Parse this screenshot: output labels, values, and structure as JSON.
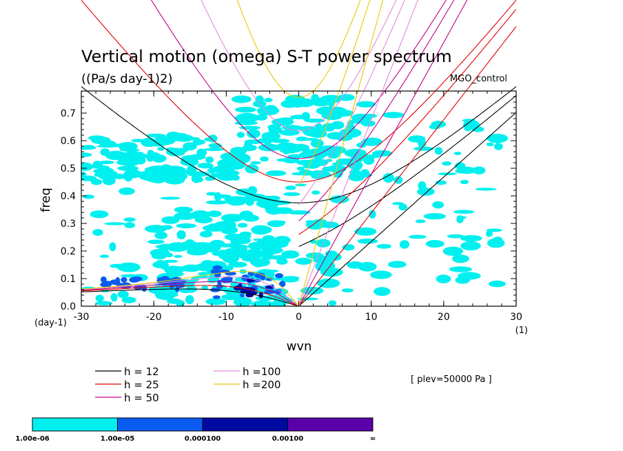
{
  "chart_data": {
    "type": "heatmap",
    "title": "Vertical motion (omega) S-T power spectrum",
    "subtitle": "((Pa/s day-1)2)",
    "run_label": "MGO_control",
    "xlabel": "wvn",
    "ylabel": "freq",
    "x_unit_label": "(1)",
    "y_unit_label": "(day-1)",
    "xlim": [
      -30,
      30
    ],
    "ylim": [
      0.0,
      0.78
    ],
    "xticks": [
      {
        "value": -30,
        "label": "-30"
      },
      {
        "value": -20,
        "label": "-20"
      },
      {
        "value": -10,
        "label": "-10"
      },
      {
        "value": 0,
        "label": "0"
      },
      {
        "value": 10,
        "label": "10"
      },
      {
        "value": 20,
        "label": "20"
      },
      {
        "value": 30,
        "label": "30"
      }
    ],
    "yticks": [
      {
        "value": 0.0,
        "label": "0.0"
      },
      {
        "value": 0.1,
        "label": "0.1"
      },
      {
        "value": 0.2,
        "label": "0.2"
      },
      {
        "value": 0.3,
        "label": "0.3"
      },
      {
        "value": 0.4,
        "label": "0.4"
      },
      {
        "value": 0.5,
        "label": "0.5"
      },
      {
        "value": 0.6,
        "label": "0.6"
      },
      {
        "value": 0.7,
        "label": "0.7"
      }
    ],
    "dispersion_curves": [
      {
        "label": "h = 12",
        "color": "#000000",
        "equatorial_depth": 12
      },
      {
        "label": "h = 25",
        "color": "#e00000",
        "equatorial_depth": 25
      },
      {
        "label": "h = 50",
        "color": "#c0008a",
        "equatorial_depth": 50
      },
      {
        "label": "h =100",
        "color": "#e08ad8",
        "equatorial_depth": 100
      },
      {
        "label": "h =200",
        "color": "#e8c800",
        "equatorial_depth": 200
      }
    ],
    "annotation": "[ plev=50000 Pa ]",
    "colorbar": {
      "levels": [
        "1.00e-06",
        "1.00e-05",
        "0.000100",
        "0.00100",
        "∞"
      ],
      "colors": [
        "#00f0f0",
        "#0a5cf0",
        "#000aa0",
        "#5a00aa"
      ]
    },
    "power_regions": [
      {
        "level": 1,
        "wvn": [
          -29,
          -1
        ],
        "freq": [
          0.01,
          0.43
        ]
      },
      {
        "level": 1,
        "wvn": [
          -20,
          -2
        ],
        "freq": [
          0.0,
          0.34
        ]
      },
      {
        "level": 1,
        "wvn": [
          -8,
          10
        ],
        "freq": [
          0.47,
          0.76
        ]
      },
      {
        "level": 1,
        "wvn": [
          -2,
          28
        ],
        "freq": [
          0.0,
          0.72
        ]
      },
      {
        "level": 1,
        "wvn": [
          -30,
          -8
        ],
        "freq": [
          0.45,
          0.62
        ]
      },
      {
        "level": 2,
        "wvn": [
          -12,
          -2
        ],
        "freq": [
          0.03,
          0.14
        ]
      },
      {
        "level": 2,
        "wvn": [
          -27,
          -16
        ],
        "freq": [
          0.06,
          0.1
        ]
      },
      {
        "level": 3,
        "wvn": [
          -9,
          -4
        ],
        "freq": [
          0.03,
          0.1
        ]
      }
    ]
  }
}
